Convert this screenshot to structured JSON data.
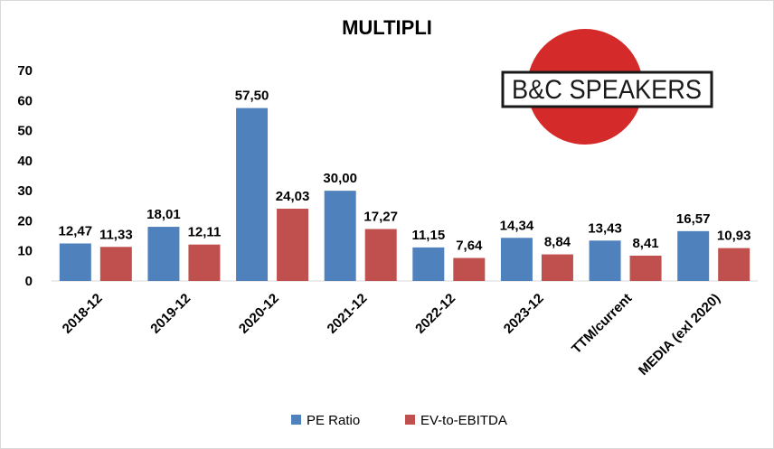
{
  "chart_data": {
    "type": "bar",
    "title": "MULTIPLI",
    "categories": [
      "2018-12",
      "2019-12",
      "2020-12",
      "2021-12",
      "2022-12",
      "2023-12",
      "TTM/current",
      "MEDIA (exl 2020)"
    ],
    "series": [
      {
        "name": "PE Ratio",
        "values": [
          12.47,
          18.01,
          57.5,
          30.0,
          11.15,
          14.34,
          13.43,
          16.57
        ],
        "labels": [
          "12,47",
          "18,01",
          "57,50",
          "30,00",
          "11,15",
          "14,34",
          "13,43",
          "16,57"
        ],
        "color": "#4f81bd"
      },
      {
        "name": "EV-to-EBITDA",
        "values": [
          11.33,
          12.11,
          24.03,
          17.27,
          7.64,
          8.84,
          8.41,
          10.93
        ],
        "labels": [
          "11,33",
          "12,11",
          "24,03",
          "17,27",
          "7,64",
          "8,84",
          "8,41",
          "10,93"
        ],
        "color": "#c0504d"
      }
    ],
    "ylim": [
      0,
      70
    ],
    "yticks": [
      "0",
      "10",
      "20",
      "30",
      "40",
      "50",
      "60",
      "70"
    ],
    "grid": false,
    "legend": "bottom"
  },
  "logo": {
    "text": "B&C SPEAKERS",
    "circle_color": "#d42a2a"
  }
}
